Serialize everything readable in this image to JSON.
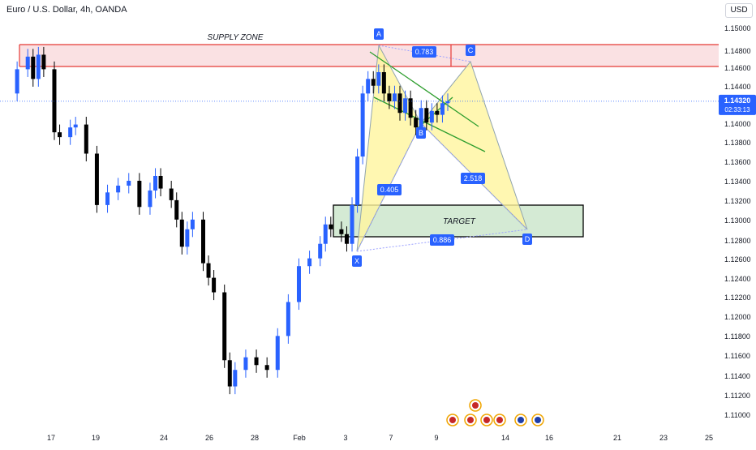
{
  "header": {
    "symbol_title": "Euro / U.S. Dollar, 4h, OANDA",
    "currency": "USD"
  },
  "price_axis": {
    "ticks": [
      "1.15000",
      "1.14800",
      "1.14600",
      "1.14400",
      "1.14000",
      "1.13800",
      "1.13600",
      "1.13400",
      "1.13200",
      "1.13000",
      "1.12800",
      "1.12600",
      "1.12400",
      "1.12200",
      "1.12000",
      "1.11800",
      "1.11600",
      "1.11400",
      "1.11200",
      "1.11000"
    ],
    "current_price": "1.14320",
    "countdown": "02:33:13"
  },
  "chart_data": {
    "type": "candlestick",
    "symbol": "EURUSD",
    "timeframe": "4h",
    "x_ticks": [
      "17",
      "19",
      "24",
      "26",
      "28",
      "Feb",
      "3",
      "7",
      "9",
      "14",
      "16",
      "21",
      "23",
      "25"
    ],
    "y_range": [
      1.1095,
      1.1518
    ],
    "current_price": 1.1432,
    "price_series_note": "",
    "price_path": [
      [
        1,
        1.144
      ],
      [
        3,
        1.1465
      ],
      [
        5,
        1.1478
      ],
      [
        6,
        1.1455
      ],
      [
        7,
        1.148
      ],
      [
        8,
        1.1465
      ],
      [
        10,
        1.14
      ],
      [
        11,
        1.1395
      ],
      [
        13,
        1.1405
      ],
      [
        14,
        1.1408
      ],
      [
        16,
        1.1378
      ],
      [
        18,
        1.1325
      ],
      [
        20,
        1.1338
      ],
      [
        22,
        1.1345
      ],
      [
        24,
        1.135
      ],
      [
        26,
        1.1323
      ],
      [
        28,
        1.134
      ],
      [
        29,
        1.1355
      ],
      [
        30,
        1.1342
      ],
      [
        32,
        1.133
      ],
      [
        33,
        1.131
      ],
      [
        34,
        1.1282
      ],
      [
        35,
        1.13
      ],
      [
        36,
        1.131
      ],
      [
        38,
        1.1265
      ],
      [
        39,
        1.125
      ],
      [
        40,
        1.1235
      ],
      [
        42,
        1.1165
      ],
      [
        43,
        1.1138
      ],
      [
        44,
        1.1155
      ],
      [
        46,
        1.1168
      ],
      [
        48,
        1.116
      ],
      [
        50,
        1.1155
      ],
      [
        52,
        1.119
      ],
      [
        54,
        1.1225
      ],
      [
        56,
        1.1262
      ],
      [
        58,
        1.127
      ],
      [
        60,
        1.1285
      ],
      [
        61,
        1.1305
      ],
      [
        62,
        1.13
      ],
      [
        64,
        1.1295
      ],
      [
        65,
        1.1285
      ],
      [
        66,
        1.1325
      ],
      [
        67,
        1.1375
      ],
      [
        68,
        1.144
      ],
      [
        69,
        1.1455
      ],
      [
        70,
        1.1448
      ],
      [
        71,
        1.1462
      ],
      [
        72,
        1.144
      ],
      [
        73,
        1.1432
      ],
      [
        74,
        1.144
      ],
      [
        75,
        1.142
      ],
      [
        76,
        1.1435
      ],
      [
        77,
        1.1415
      ],
      [
        78,
        1.1405
      ],
      [
        79,
        1.1425
      ],
      [
        80,
        1.141
      ],
      [
        81,
        1.1422
      ],
      [
        82,
        1.1418
      ],
      [
        83,
        1.143
      ],
      [
        84,
        1.1432
      ]
    ],
    "annotations": {
      "supply_zone": {
        "label": "SUPPLY ZONE",
        "price_top": 1.1482,
        "price_bottom": 1.1459
      },
      "target_zone": {
        "label": "TARGET",
        "price_top": 1.1315,
        "price_bottom": 1.1285
      },
      "harmonic_pattern": {
        "points": [
          {
            "label": "X",
            "price": 1.1272
          },
          {
            "label": "A",
            "price": 1.1482
          },
          {
            "label": "B",
            "price": 1.1397
          },
          {
            "label": "C",
            "price": 1.1466
          },
          {
            "label": "D",
            "price": 1.1293
          }
        ],
        "ratios": [
          "0.783",
          "0.405",
          "2.518",
          "0.886"
        ]
      }
    }
  },
  "colors": {
    "bull": "#2962ff",
    "bear": "#000000",
    "supply_fill": "#f8d7da",
    "supply_border": "#e53935",
    "target_fill": "#cfe8cf",
    "pattern_fill": "#fff59d",
    "pattern_stroke": "#90a4ae",
    "trend_green": "#2e9e2e",
    "label_blue": "#2962ff",
    "price_tag": "#2962ff"
  },
  "icons": [
    "event-flag-icon-us",
    "event-flag-icon-us",
    "event-flag-icon-us",
    "event-flag-icon-us",
    "event-flag-icon-us",
    "event-flag-icon-eu",
    "event-flag-icon-eu"
  ]
}
